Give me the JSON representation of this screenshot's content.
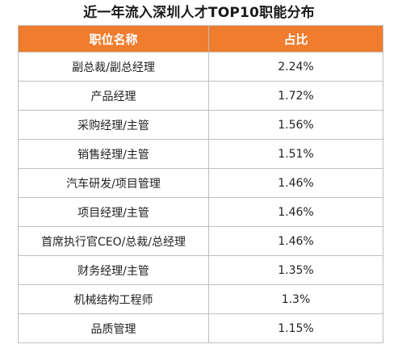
{
  "title": "近一年流入深圳人才TOP10职能分布",
  "table": {
    "headers": [
      "职位名称",
      "占比"
    ],
    "rows": [
      {
        "position": "副总裁/副总经理",
        "share": "2.24%"
      },
      {
        "position": "产品经理",
        "share": "1.72%"
      },
      {
        "position": "采购经理/主管",
        "share": "1.56%"
      },
      {
        "position": "销售经理/主管",
        "share": "1.51%"
      },
      {
        "position": "汽车研发/项目管理",
        "share": "1.46%"
      },
      {
        "position": "项目经理/主管",
        "share": "1.46%"
      },
      {
        "position": "首席执行官CEO/总裁/总经理",
        "share": "1.46%"
      },
      {
        "position": "财务经理/主管",
        "share": "1.35%"
      },
      {
        "position": "机械结构工程师",
        "share": "1.3%"
      },
      {
        "position": "品质管理",
        "share": "1.15%"
      }
    ]
  },
  "colors": {
    "header_bg": "#f07c2d",
    "header_text": "#ffffff",
    "border": "#bfbfbf"
  }
}
